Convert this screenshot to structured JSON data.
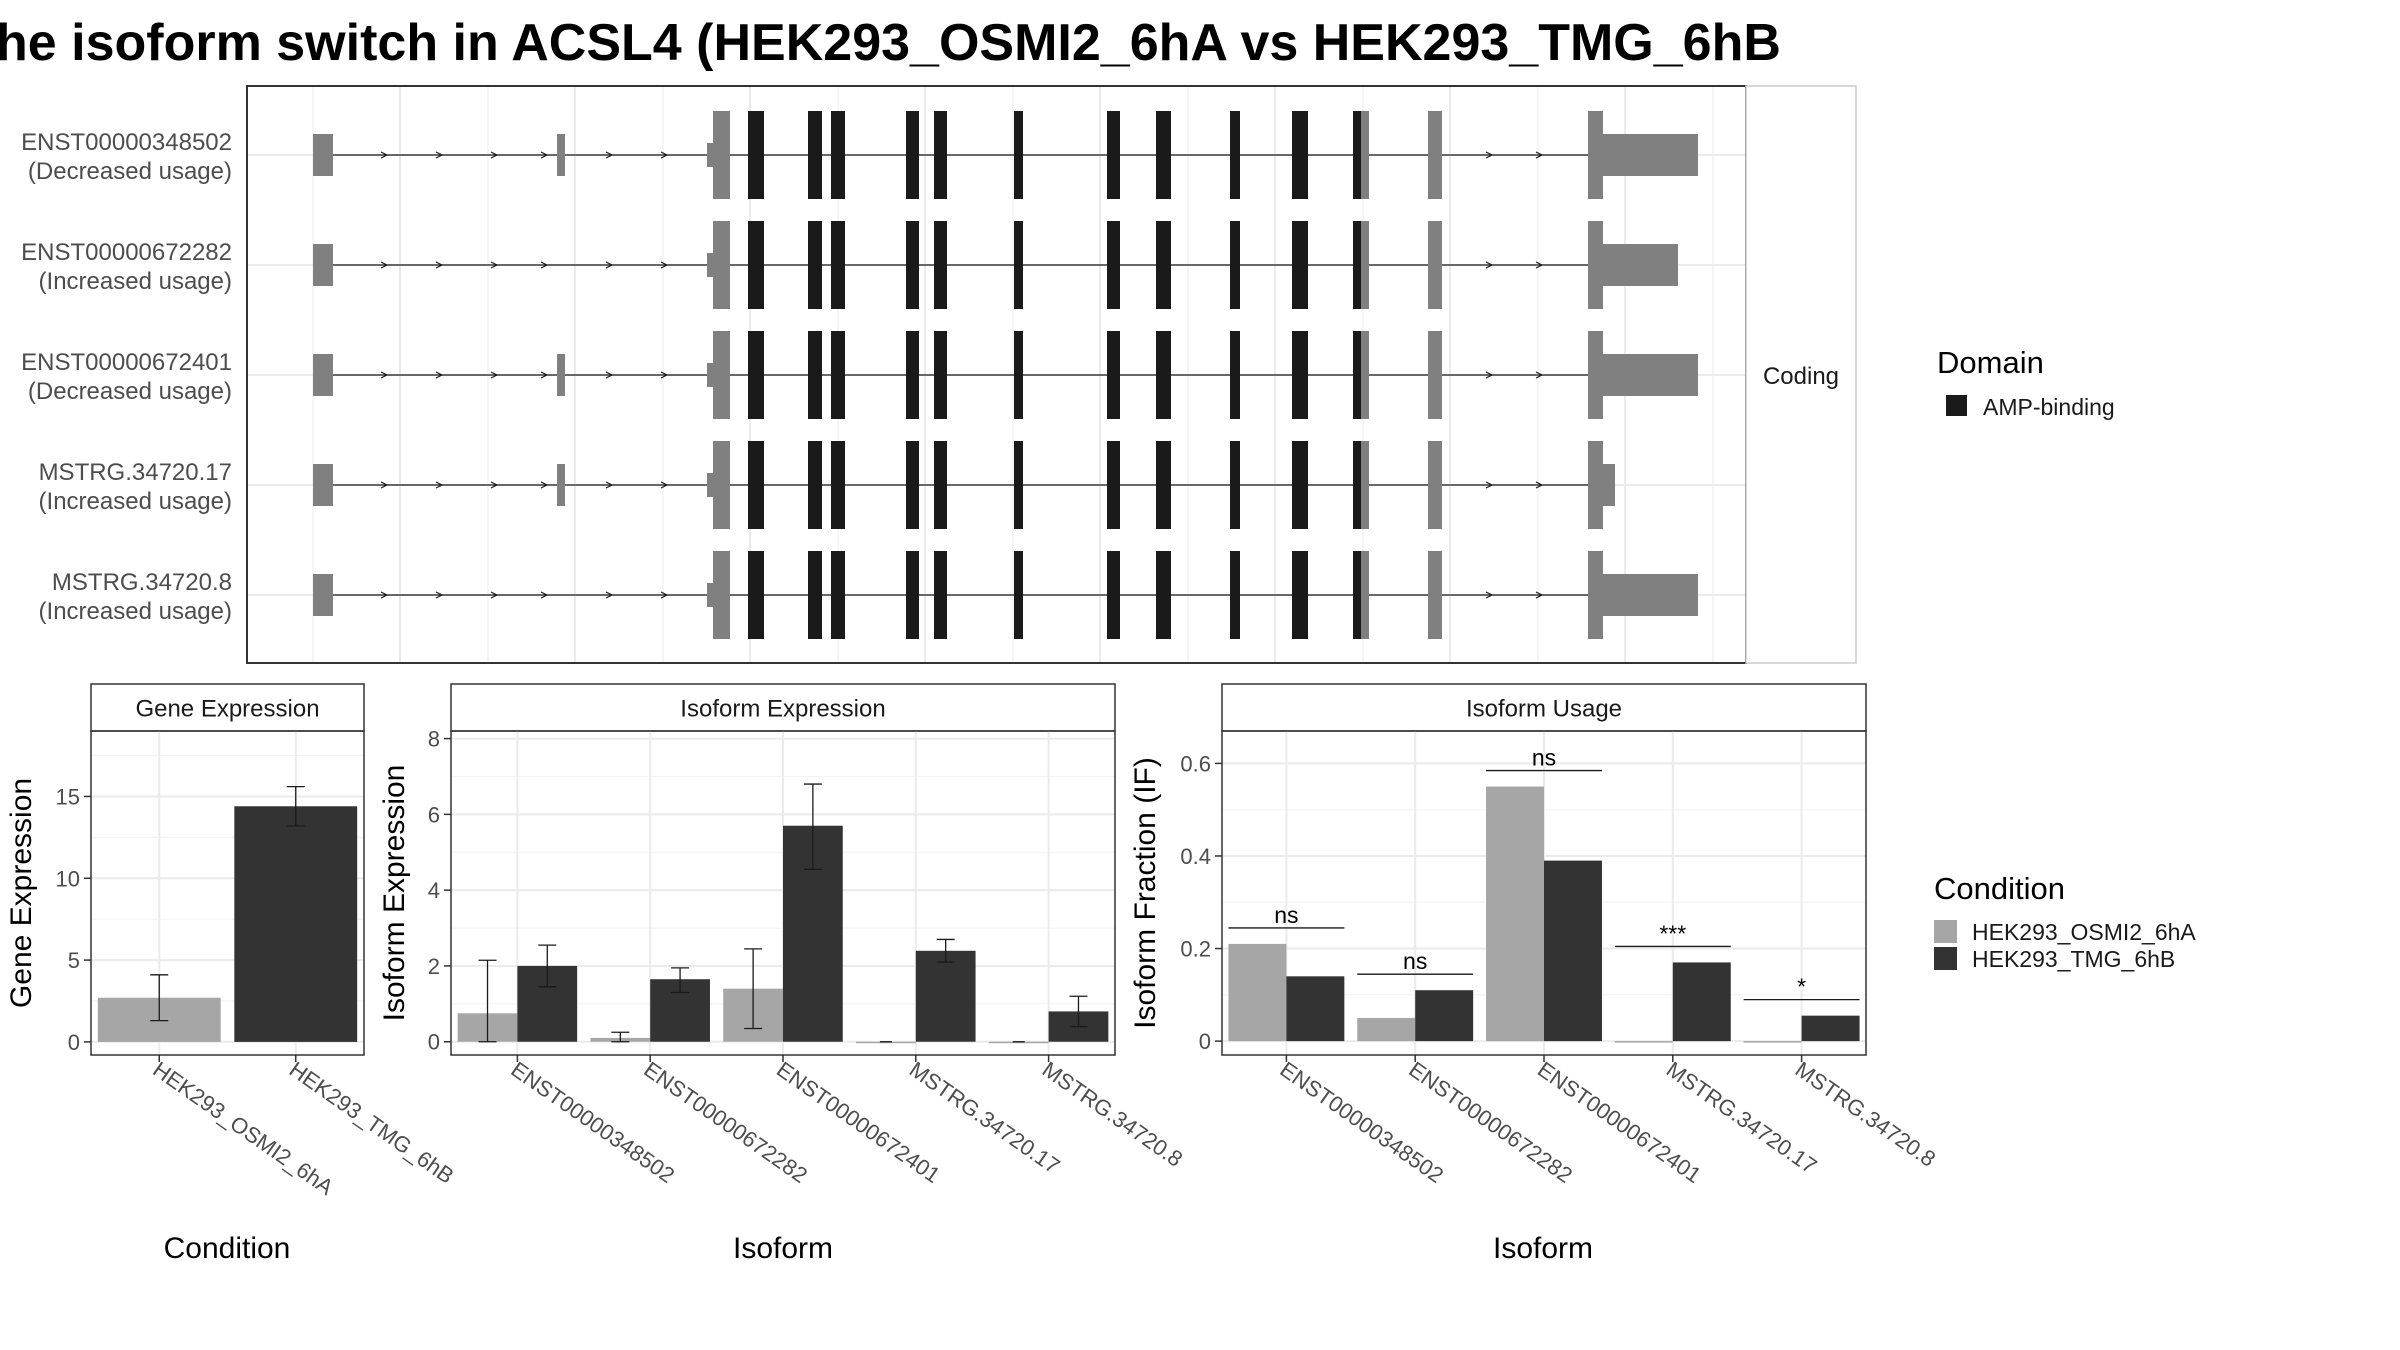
{
  "title": "he isoform switch in ACSL4 (HEK293_OSMI2_6hA vs HEK293_TMG_6hB",
  "colors": {
    "utr": "#808080",
    "cds": "#1a1a1a",
    "condA": "#a6a6a6",
    "condB": "#333333",
    "grid": "#ebebeb",
    "frame": "#333333"
  },
  "structure": {
    "facet_label": "Coding",
    "transcripts": [
      {
        "id": "ENST00000348502",
        "usage": "(Decreased usage)",
        "exon1b": true,
        "end_exon": "long"
      },
      {
        "id": "ENST00000672282",
        "usage": "(Increased usage)",
        "exon1b": false,
        "end_exon": "medium"
      },
      {
        "id": "ENST00000672401",
        "usage": "(Decreased usage)",
        "exon1b": true,
        "end_exon": "long"
      },
      {
        "id": "MSTRG.34720.17",
        "usage": "(Increased usage)",
        "exon1b": true,
        "end_exon": "short"
      },
      {
        "id": "MSTRG.34720.8",
        "usage": "(Increased usage)",
        "exon1b": false,
        "end_exon": "long"
      }
    ]
  },
  "legends": {
    "domain": {
      "title": "Domain",
      "items": [
        {
          "label": "AMP-binding",
          "color": "#1a1a1a"
        }
      ]
    },
    "condition": {
      "title": "Condition",
      "items": [
        {
          "label": "HEK293_OSMI2_6hA",
          "color": "#a6a6a6"
        },
        {
          "label": "HEK293_TMG_6hB",
          "color": "#333333"
        }
      ]
    }
  },
  "chart_data": [
    {
      "type": "bar",
      "title": "Gene Expression",
      "xlabel": "Condition",
      "ylabel": "Gene Expression",
      "categories": [
        "HEK293_OSMI2_6hA",
        "HEK293_TMG_6hB"
      ],
      "values": [
        2.7,
        14.4
      ],
      "error_low": [
        1.3,
        13.2
      ],
      "error_high": [
        4.1,
        15.6
      ],
      "ylim": [
        -0.8,
        19
      ],
      "yticks": [
        0,
        5,
        10,
        15
      ]
    },
    {
      "type": "bar",
      "title": "Isoform Expression",
      "xlabel": "Isoform",
      "ylabel": "Isoform Expression",
      "categories": [
        "ENST00000348502",
        "ENST00000672282",
        "ENST00000672401",
        "MSTRG.34720.17",
        "MSTRG.34720.8"
      ],
      "series": [
        {
          "name": "HEK293_OSMI2_6hA",
          "values": [
            0.75,
            0.1,
            1.4,
            0.0,
            0.0
          ],
          "error_low": [
            0.0,
            0.0,
            0.35,
            0.0,
            0.0
          ],
          "error_high": [
            2.15,
            0.25,
            2.45,
            0.0,
            0.0
          ]
        },
        {
          "name": "HEK293_TMG_6hB",
          "values": [
            2.0,
            1.65,
            5.7,
            2.4,
            0.8
          ],
          "error_low": [
            1.45,
            1.3,
            4.55,
            2.1,
            0.4
          ],
          "error_high": [
            2.55,
            1.95,
            6.8,
            2.7,
            1.2
          ]
        }
      ],
      "ylim": [
        -0.35,
        8.2
      ],
      "yticks": [
        0,
        2,
        4,
        6,
        8
      ]
    },
    {
      "type": "bar",
      "title": "Isoform Usage",
      "xlabel": "Isoform",
      "ylabel": "Isoform Fraction (IF)",
      "categories": [
        "ENST00000348502",
        "ENST00000672282",
        "ENST00000672401",
        "MSTRG.34720.17",
        "MSTRG.34720.8"
      ],
      "series": [
        {
          "name": "HEK293_OSMI2_6hA",
          "values": [
            0.21,
            0.05,
            0.55,
            0.0,
            0.0
          ]
        },
        {
          "name": "HEK293_TMG_6hB",
          "values": [
            0.14,
            0.11,
            0.39,
            0.17,
            0.055
          ]
        }
      ],
      "significance": [
        "ns",
        "ns",
        "ns",
        "***",
        "*"
      ],
      "ylim": [
        -0.03,
        0.67
      ],
      "yticks": [
        0.0,
        0.2,
        0.4,
        0.6
      ]
    }
  ]
}
